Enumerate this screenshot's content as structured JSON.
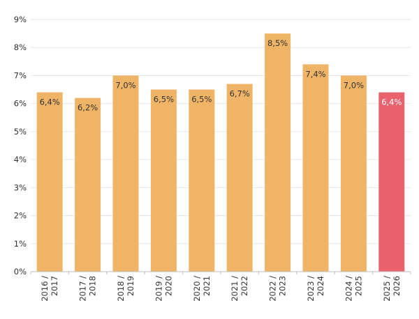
{
  "chart_data": {
    "type": "bar",
    "categories": [
      "2016 / 2017",
      "2017 / 2018",
      "2018 / 2019",
      "2019 / 2020",
      "2020 / 2021",
      "2021 / 2022",
      "2022 / 2023",
      "2023 / 2024",
      "2024 / 2025",
      "2025 / 2026"
    ],
    "values": [
      6.4,
      6.2,
      7.0,
      6.5,
      6.5,
      6.7,
      8.5,
      7.4,
      7.0,
      6.4
    ],
    "data_labels": [
      "6,4%",
      "6,2%",
      "7,0%",
      "6,5%",
      "6,5%",
      "6,7%",
      "8,5%",
      "7,4%",
      "7,0%",
      "6,4%"
    ],
    "y_ticks": [
      "0%",
      "1%",
      "2%",
      "3%",
      "4%",
      "5%",
      "6%",
      "7%",
      "8%",
      "9%"
    ],
    "ylim": [
      0,
      9
    ],
    "grid": true,
    "legend": "none",
    "colors": {
      "bar": "#f0b467",
      "highlight_bar": "#e8636e",
      "grid": "#e6e6e6",
      "axis": "#bfbfbf"
    },
    "highlight_index": 9
  }
}
